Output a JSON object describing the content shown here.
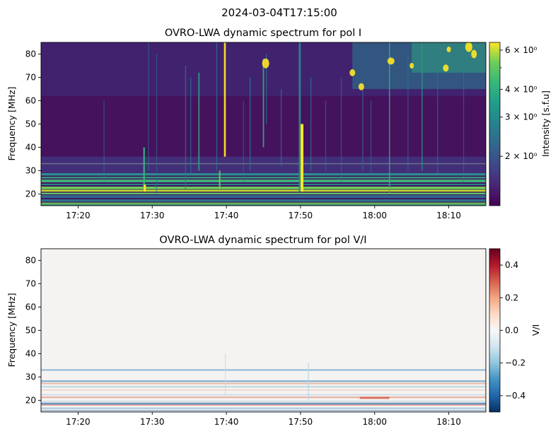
{
  "figure_title": "2024-03-04T17:15:00",
  "chart_data": [
    {
      "type": "heatmap",
      "title": "OVRO-LWA dynamic spectrum for pol I",
      "ylabel": "Frequency [MHz]",
      "xlabel": "",
      "x_ticks": [
        "17:20",
        "17:30",
        "17:40",
        "17:50",
        "18:00",
        "18:10"
      ],
      "x_tick_minutes": [
        5,
        15,
        25,
        35,
        45,
        55
      ],
      "xlim_minutes": [
        0,
        60
      ],
      "y_ticks": [
        20,
        30,
        40,
        50,
        60,
        70,
        80
      ],
      "ylim": [
        15,
        85
      ],
      "colormap": "viridis",
      "colorbar": {
        "label": "Intensity [s.f.u]",
        "scale": "log",
        "range": [
          1.2,
          6.5
        ],
        "ticks": [
          {
            "value": 6,
            "label": "6 × 10⁰"
          },
          {
            "value": 4,
            "label": "4 × 10⁰"
          },
          {
            "value": 3,
            "label": "3 × 10⁰"
          },
          {
            "value": 2,
            "label": "2 × 10⁰"
          }
        ]
      }
    },
    {
      "type": "heatmap",
      "title": "OVRO-LWA dynamic spectrum for pol V/I",
      "ylabel": "Frequency [MHz]",
      "xlabel": "",
      "x_ticks": [
        "17:20",
        "17:30",
        "17:40",
        "17:50",
        "18:00",
        "18:10"
      ],
      "x_tick_minutes": [
        5,
        15,
        25,
        35,
        45,
        55
      ],
      "xlim_minutes": [
        0,
        60
      ],
      "y_ticks": [
        20,
        30,
        40,
        50,
        60,
        70,
        80
      ],
      "ylim": [
        15,
        85
      ],
      "colormap": "RdBu_r",
      "colorbar": {
        "label": "V/I",
        "scale": "linear",
        "range": [
          -0.5,
          0.5
        ],
        "ticks": [
          {
            "value": 0.4,
            "label": "0.4"
          },
          {
            "value": 0.2,
            "label": "0.2"
          },
          {
            "value": 0.0,
            "label": "0.0"
          },
          {
            "value": -0.2,
            "label": "−0.2"
          },
          {
            "value": -0.4,
            "label": "−0.4"
          }
        ]
      }
    }
  ]
}
